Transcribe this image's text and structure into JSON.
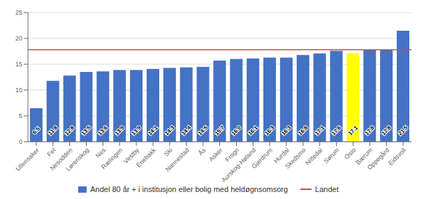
{
  "chart_data": {
    "type": "bar",
    "categories": [
      "Ullensaker",
      "Fet",
      "Nesodden",
      "Lørenskog",
      "Nes",
      "Rælingen",
      "Vestby",
      "Enebakk",
      "Ski",
      "Nannestad",
      "Ås",
      "Asker",
      "Frogn",
      "Aurskog-Høland",
      "Gjerdrum",
      "Hurdal",
      "Skedsmo",
      "Nittedal",
      "Sørum",
      "Oslo",
      "Bærum",
      "Oppegård",
      "Eidsvoll"
    ],
    "series": [
      {
        "name": "Andel 80 år + i institusjon eller bolig med heldøgnsomsorg",
        "colors": [
          "#4472C4",
          "#4472C4",
          "#4472C4",
          "#4472C4",
          "#4472C4",
          "#4472C4",
          "#4472C4",
          "#4472C4",
          "#4472C4",
          "#4472C4",
          "#4472C4",
          "#4472C4",
          "#4472C4",
          "#4472C4",
          "#4472C4",
          "#4472C4",
          "#4472C4",
          "#4472C4",
          "#4472C4",
          "#FFFF00",
          "#4472C4",
          "#4472C4",
          "#4472C4"
        ],
        "values": [
          6.5,
          11.8,
          12.8,
          13.5,
          13.6,
          13.9,
          13.9,
          14.1,
          14.3,
          14.4,
          14.5,
          15.7,
          16.0,
          16.1,
          16.3,
          16.3,
          16.8,
          17.1,
          17.6,
          17.1,
          17.8,
          17.8,
          21.5
        ],
        "value_labels": [
          "6.5",
          "11.8",
          "12.8",
          "13.5",
          "13.6",
          "13.9",
          "13.9",
          "14.1",
          "14.3",
          "14.4",
          "14.5",
          "15.7",
          "16.0",
          "16.1",
          "16.3",
          "16.3",
          "16.8",
          "17.1",
          "17.6",
          "17.1",
          "17.8",
          "17.8",
          "21.5"
        ]
      }
    ],
    "reference_line": {
      "name": "Landet",
      "value": 17.8,
      "color": "#C0504D"
    },
    "ylim": [
      0,
      25
    ],
    "yticks": [
      0,
      5,
      10,
      15,
      20,
      25
    ],
    "grid": true,
    "legend": "bottom",
    "data_labels": true
  }
}
